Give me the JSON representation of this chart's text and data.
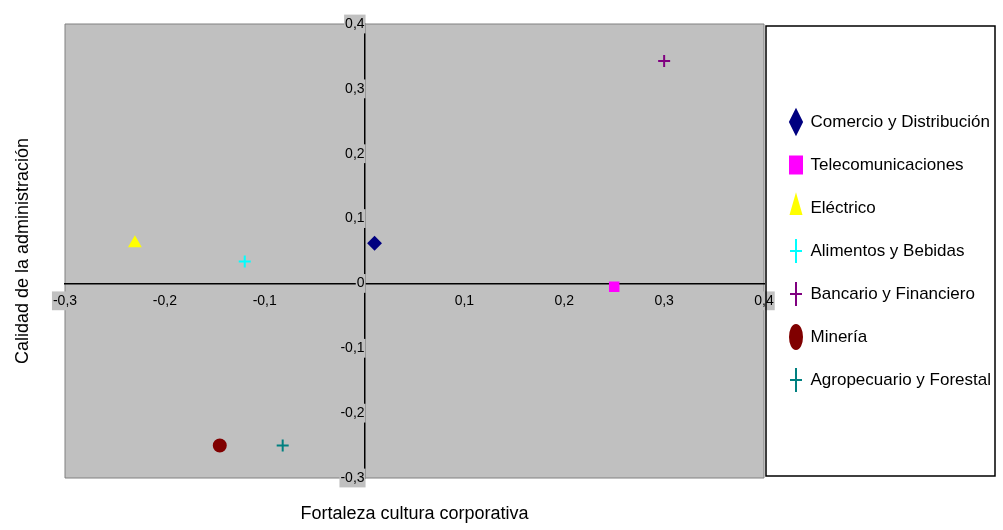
{
  "chart_data": {
    "type": "scatter",
    "xlabel": "Fortaleza cultura corporativa",
    "ylabel": "Calidad de la administración",
    "xlim": [
      -0.3,
      0.4
    ],
    "ylim": [
      -0.3,
      0.4
    ],
    "xticks": [
      {
        "value": -0.3,
        "label": "-0,3"
      },
      {
        "value": -0.2,
        "label": "-0,2"
      },
      {
        "value": -0.1,
        "label": "-0,1"
      },
      {
        "value": 0,
        "label": null
      },
      {
        "value": 0.1,
        "label": "0,1"
      },
      {
        "value": 0.2,
        "label": "0,2"
      },
      {
        "value": 0.3,
        "label": "0,3"
      },
      {
        "value": 0.4,
        "label": "0,4"
      }
    ],
    "yticks": [
      {
        "value": -0.3,
        "label": "-0,3"
      },
      {
        "value": -0.2,
        "label": "-0,2"
      },
      {
        "value": -0.1,
        "label": "-0,1"
      },
      0,
      {
        "value": 0.1,
        "label": "0,1"
      },
      {
        "value": 0.2,
        "label": "0,2"
      },
      {
        "value": 0.3,
        "label": "0,3"
      },
      {
        "value": 0.4,
        "label": "0,4"
      }
    ],
    "grid": false,
    "legend": "right",
    "series": [
      {
        "name": "Comercio y Distribución",
        "color": "#000080",
        "marker": "diamond",
        "x": [
          0.01
        ],
        "values": [
          0.062
        ]
      },
      {
        "name": "Telecomunicaciones",
        "color": "#ff00ff",
        "marker": "square",
        "x": [
          0.25
        ],
        "values": [
          -0.005
        ]
      },
      {
        "name": "Eléctrico",
        "color": "#ffff00",
        "marker": "triangle",
        "x": [
          -0.23
        ],
        "values": [
          0.062
        ]
      },
      {
        "name": "Alimentos y Bebidas",
        "color": "#00ffff",
        "marker": "cross",
        "x": [
          -0.12
        ],
        "values": [
          0.034
        ]
      },
      {
        "name": "Bancario y Financiero",
        "color": "#800080",
        "marker": "cross",
        "x": [
          0.3
        ],
        "values": [
          0.343
        ]
      },
      {
        "name": "Minería",
        "color": "#800000",
        "marker": "circle",
        "x": [
          -0.145
        ],
        "values": [
          -0.25
        ]
      },
      {
        "name": "Agropecuario y Forestal",
        "color": "#008080",
        "marker": "cross",
        "x": [
          -0.082
        ],
        "values": [
          -0.25
        ]
      }
    ]
  }
}
